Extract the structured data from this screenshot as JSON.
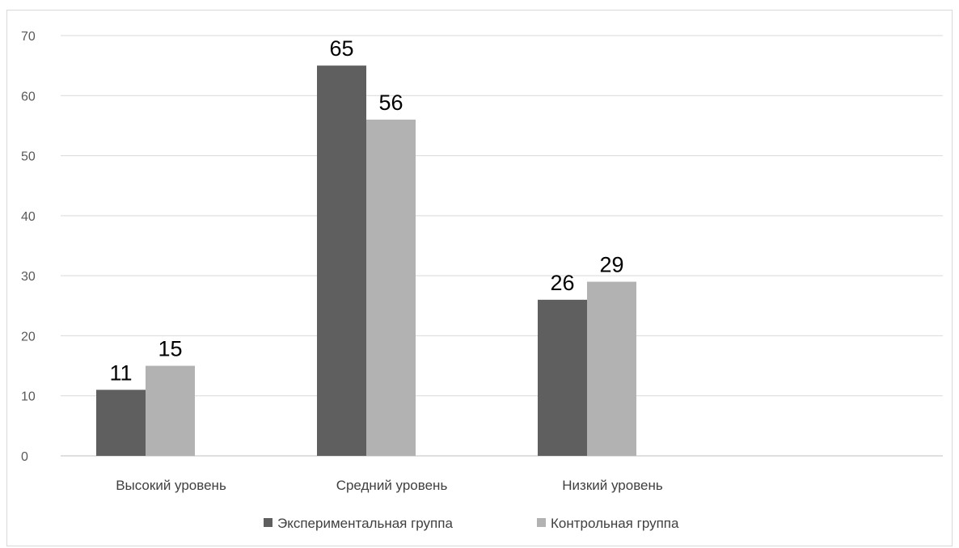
{
  "chart_data": {
    "type": "bar",
    "categories": [
      "Высокий уровень",
      "Средний уровень",
      "Низкий уровень"
    ],
    "series": [
      {
        "name": "Экспериментальная группа",
        "values": [
          11,
          65,
          26
        ],
        "color": "#5f5f5f"
      },
      {
        "name": "Контрольная группа",
        "values": [
          15,
          56,
          29
        ],
        "color": "#b2b2b2"
      }
    ],
    "ylim": [
      0,
      70
    ],
    "yticks": [
      0,
      10,
      20,
      30,
      40,
      50,
      60,
      70
    ],
    "grid": true,
    "legend_position": "bottom"
  }
}
